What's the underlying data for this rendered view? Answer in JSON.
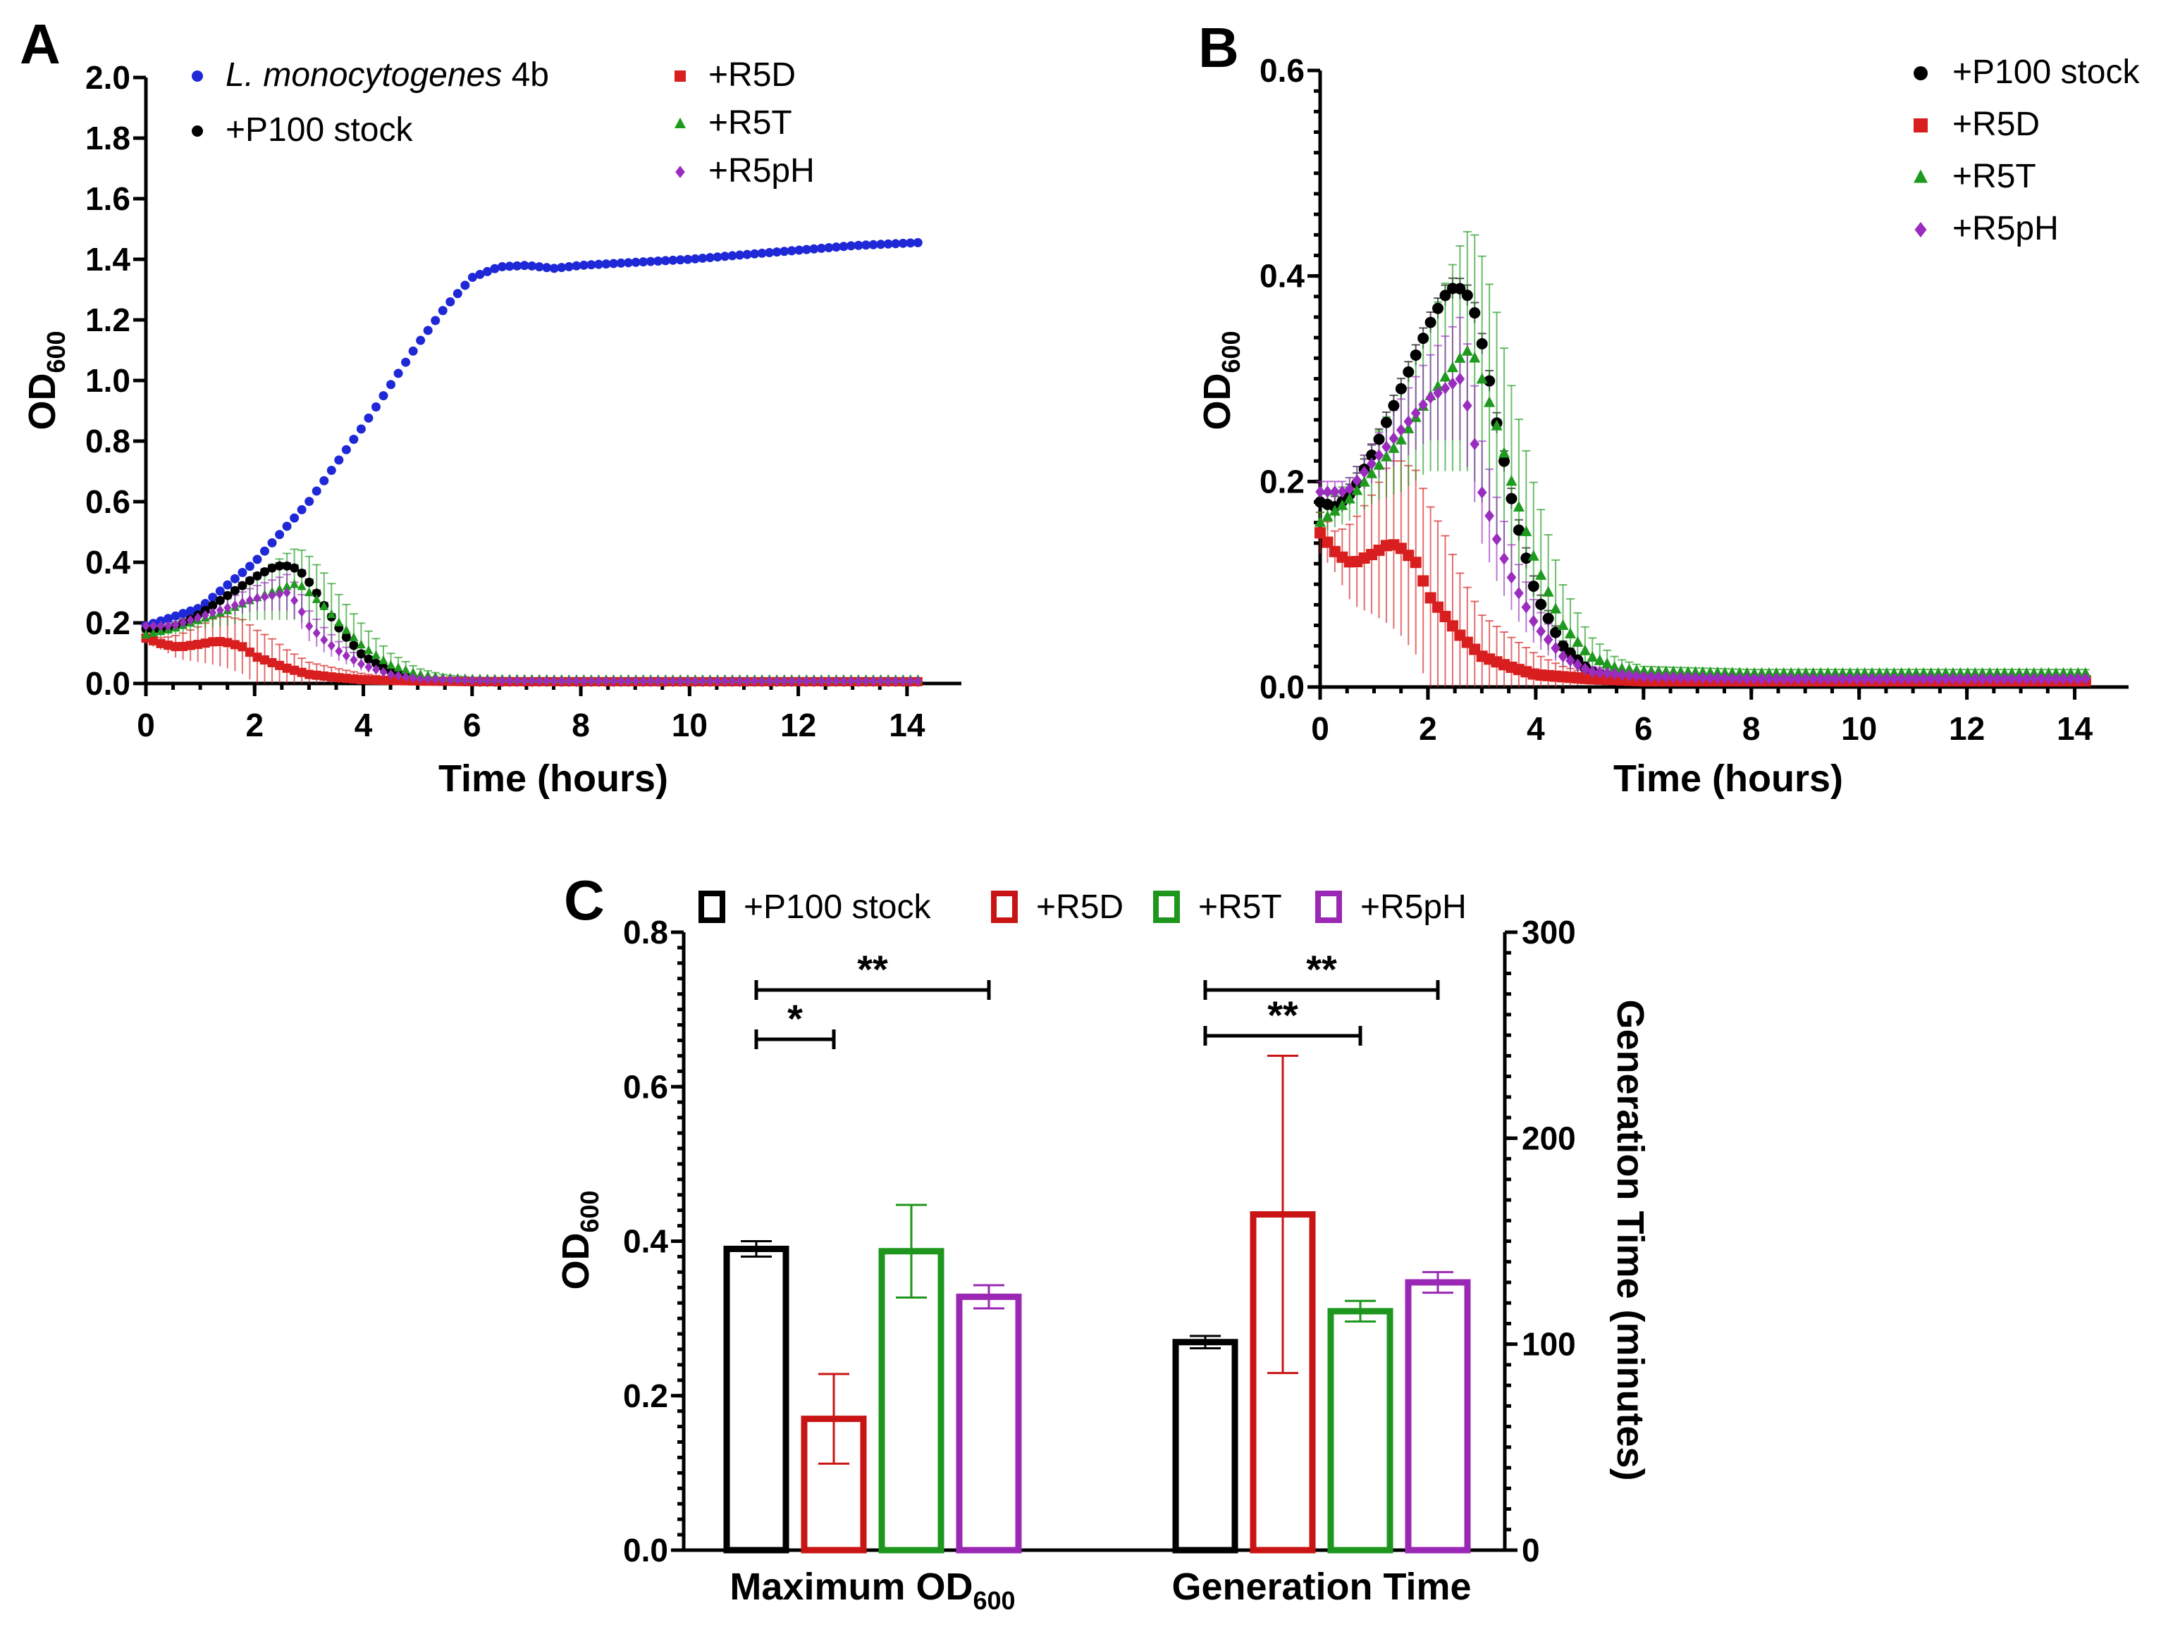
{
  "chart_data": [
    {
      "panel": "A",
      "type": "scatter",
      "xlabel": "Time (hours)",
      "ylabel": "OD",
      "ylabel_sub": "600",
      "xlim": [
        0,
        15
      ],
      "ylim": [
        0,
        2.0
      ],
      "xticks": [
        "0",
        "2",
        "4",
        "6",
        "8",
        "10",
        "12",
        "14"
      ],
      "yticks": [
        "0.0",
        "0.2",
        "0.4",
        "0.6",
        "0.8",
        "1.0",
        "1.2",
        "1.4",
        "1.6",
        "1.8",
        "2.0"
      ],
      "legend": [
        {
          "label_italic": "L. monocytogenes",
          "label": " 4b",
          "color": "#1f28d6",
          "marker": "circle"
        },
        {
          "label": "+P100 stock",
          "color": "#000000",
          "marker": "circle"
        },
        {
          "label": "+R5D",
          "color": "#d81e1e",
          "marker": "square"
        },
        {
          "label": "+R5T",
          "color": "#1e9a1e",
          "marker": "triangle"
        },
        {
          "label": "+R5pH",
          "color": "#9a2dbe",
          "marker": "diamond"
        }
      ],
      "series": [
        {
          "name": "L. monocytogenes 4b",
          "color": "#1f28d6",
          "marker": "circle",
          "x": [
            0,
            1,
            2,
            3,
            4,
            5,
            5.5,
            6,
            6.5,
            7,
            7.5,
            8,
            9,
            10,
            11,
            12,
            13,
            14.2
          ],
          "y": [
            0.19,
            0.25,
            0.4,
            0.6,
            0.85,
            1.12,
            1.24,
            1.34,
            1.375,
            1.38,
            1.37,
            1.38,
            1.39,
            1.4,
            1.415,
            1.43,
            1.445,
            1.455
          ],
          "err": []
        },
        {
          "name": "+P100 stock",
          "color": "#000000",
          "marker": "circle",
          "x": [
            0,
            0.3,
            0.6,
            1,
            1.5,
            2,
            2.3,
            2.5,
            2.7,
            2.9,
            3.1,
            3.3,
            3.6,
            4,
            4.5,
            5,
            5.5,
            6,
            8,
            10,
            12,
            14.2
          ],
          "y": [
            0.18,
            0.175,
            0.19,
            0.23,
            0.29,
            0.35,
            0.38,
            0.39,
            0.385,
            0.36,
            0.31,
            0.25,
            0.17,
            0.09,
            0.04,
            0.015,
            0.008,
            0.005,
            0.005,
            0.005,
            0.005,
            0.005
          ],
          "err": [
            0.01,
            0.01,
            0.01,
            0.01,
            0.01,
            0.01,
            0.01,
            0.01,
            0.01,
            0.01,
            0.01,
            0.01,
            0.01,
            0.01,
            0.005,
            0.005,
            0.003,
            0.003,
            0.003,
            0.003,
            0.003,
            0.003
          ]
        },
        {
          "name": "+R5D",
          "color": "#d81e1e",
          "marker": "square",
          "x": [
            0,
            0.3,
            0.6,
            1,
            1.3,
            1.5,
            1.8,
            2,
            2.3,
            2.6,
            3,
            3.5,
            4,
            4.5,
            5,
            6,
            8,
            10,
            12,
            14.2
          ],
          "y": [
            0.15,
            0.13,
            0.12,
            0.13,
            0.14,
            0.135,
            0.12,
            0.09,
            0.07,
            0.05,
            0.03,
            0.02,
            0.012,
            0.01,
            0.008,
            0.006,
            0.006,
            0.006,
            0.006,
            0.006
          ],
          "err": [
            0.02,
            0.02,
            0.04,
            0.06,
            0.08,
            0.085,
            0.09,
            0.09,
            0.08,
            0.06,
            0.04,
            0.03,
            0.02,
            0.01,
            0.005,
            0.003,
            0.003,
            0.003,
            0.003,
            0.003
          ]
        },
        {
          "name": "+R5T",
          "color": "#1e9a1e",
          "marker": "triangle",
          "x": [
            0,
            0.5,
            1,
            1.5,
            2,
            2.3,
            2.6,
            2.8,
            3,
            3.3,
            3.6,
            4,
            4.5,
            5,
            5.5,
            6,
            8,
            10,
            12,
            14.2
          ],
          "y": [
            0.16,
            0.18,
            0.21,
            0.24,
            0.28,
            0.3,
            0.32,
            0.33,
            0.3,
            0.25,
            0.19,
            0.12,
            0.06,
            0.03,
            0.018,
            0.015,
            0.013,
            0.013,
            0.013,
            0.013
          ],
          "err": [
            0.01,
            0.02,
            0.03,
            0.05,
            0.07,
            0.09,
            0.11,
            0.12,
            0.12,
            0.11,
            0.09,
            0.07,
            0.04,
            0.02,
            0.01,
            0.005,
            0.004,
            0.004,
            0.004,
            0.004
          ]
        },
        {
          "name": "+R5pH",
          "color": "#9a2dbe",
          "marker": "diamond",
          "x": [
            0,
            0.5,
            1,
            1.5,
            2,
            2.3,
            2.6,
            2.8,
            3,
            3.3,
            3.6,
            4,
            4.5,
            5,
            6,
            8,
            10,
            12,
            14.2
          ],
          "y": [
            0.19,
            0.19,
            0.22,
            0.25,
            0.28,
            0.29,
            0.3,
            0.26,
            0.19,
            0.14,
            0.1,
            0.06,
            0.03,
            0.015,
            0.01,
            0.008,
            0.008,
            0.008,
            0.008
          ],
          "err": [
            0.01,
            0.01,
            0.02,
            0.03,
            0.04,
            0.05,
            0.06,
            0.06,
            0.05,
            0.04,
            0.03,
            0.02,
            0.01,
            0.005,
            0.004,
            0.003,
            0.003,
            0.003,
            0.003
          ]
        }
      ]
    },
    {
      "panel": "B",
      "type": "scatter",
      "xlabel": "Time (hours)",
      "ylabel": "OD",
      "ylabel_sub": "600",
      "xlim": [
        0,
        15
      ],
      "ylim": [
        0,
        0.6
      ],
      "xticks": [
        "0",
        "2",
        "4",
        "6",
        "8",
        "10",
        "12",
        "14"
      ],
      "yticks": [
        "0.0",
        "0.2",
        "0.4",
        "0.6"
      ],
      "legend": [
        {
          "label": "+P100 stock",
          "color": "#000000",
          "marker": "circle"
        },
        {
          "label": "+R5D",
          "color": "#d81e1e",
          "marker": "square"
        },
        {
          "label": "+R5T",
          "color": "#1e9a1e",
          "marker": "triangle"
        },
        {
          "label": "+R5pH",
          "color": "#9a2dbe",
          "marker": "diamond"
        }
      ],
      "series": "same as panel A without L. monocytogenes 4b"
    },
    {
      "panel": "C",
      "type": "bar",
      "categories": [
        "Maximum OD",
        "Generation Time"
      ],
      "category_sub": [
        "600",
        ""
      ],
      "ylabel_left": "OD",
      "ylabel_left_sub": "600",
      "ylabel_right": "Generation Time (minutes)",
      "ylim_left": [
        0,
        0.8
      ],
      "ylim_right": [
        0,
        300
      ],
      "yticks_left": [
        "0.0",
        "0.2",
        "0.4",
        "0.6",
        "0.8"
      ],
      "yticks_right": [
        "0",
        "100",
        "200",
        "300"
      ],
      "legend": [
        {
          "label": "+P100 stock",
          "color": "#000000"
        },
        {
          "label": "+R5D",
          "color": "#c81414"
        },
        {
          "label": "+R5T",
          "color": "#1e961e"
        },
        {
          "label": "+R5pH",
          "color": "#9a28b4"
        }
      ],
      "series": [
        {
          "name": "+P100 stock",
          "color": "#000000",
          "max_od": 0.39,
          "max_od_err": 0.01,
          "gen_time": 101,
          "gen_time_err": 3
        },
        {
          "name": "+R5D",
          "color": "#c81414",
          "max_od": 0.17,
          "max_od_err": 0.058,
          "gen_time": 163,
          "gen_time_err": 77
        },
        {
          "name": "+R5T",
          "color": "#1e961e",
          "max_od": 0.387,
          "max_od_err": 0.06,
          "gen_time": 116,
          "gen_time_err": 5
        },
        {
          "name": "+R5pH",
          "color": "#9a28b4",
          "max_od": 0.328,
          "max_od_err": 0.015,
          "gen_time": 130,
          "gen_time_err": 5
        }
      ],
      "significance": [
        {
          "group": "Maximum OD",
          "from": "+P100 stock",
          "to": "+R5pH",
          "label": "**"
        },
        {
          "group": "Maximum OD",
          "from": "+P100 stock",
          "to": "+R5D",
          "label": "*"
        },
        {
          "group": "Generation Time",
          "from": "+P100 stock",
          "to": "+R5pH",
          "label": "**"
        },
        {
          "group": "Generation Time",
          "from": "+P100 stock",
          "to": "+R5T",
          "label": "**"
        }
      ]
    }
  ],
  "labels": {
    "A": "A",
    "B": "B",
    "C": "C"
  }
}
